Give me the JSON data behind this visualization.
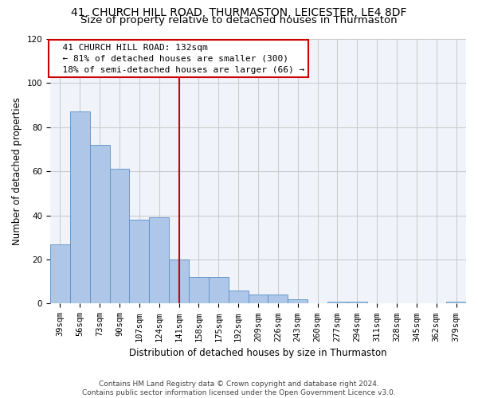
{
  "title_line1": "41, CHURCH HILL ROAD, THURMASTON, LEICESTER, LE4 8DF",
  "title_line2": "Size of property relative to detached houses in Thurmaston",
  "xlabel": "Distribution of detached houses by size in Thurmaston",
  "ylabel": "Number of detached properties",
  "categories": [
    "39sqm",
    "56sqm",
    "73sqm",
    "90sqm",
    "107sqm",
    "124sqm",
    "141sqm",
    "158sqm",
    "175sqm",
    "192sqm",
    "209sqm",
    "226sqm",
    "243sqm",
    "260sqm",
    "277sqm",
    "294sqm",
    "311sqm",
    "328sqm",
    "345sqm",
    "362sqm",
    "379sqm"
  ],
  "values": [
    27,
    87,
    72,
    61,
    38,
    39,
    20,
    12,
    12,
    6,
    4,
    4,
    2,
    0,
    1,
    1,
    0,
    0,
    0,
    0,
    1
  ],
  "bar_color": "#aec6e8",
  "bar_edgecolor": "#5a8fc2",
  "vline_x_index": 6,
  "vline_color": "#cc0000",
  "annotation_text": "  41 CHURCH HILL ROAD: 132sqm\n  ← 81% of detached houses are smaller (300)\n  18% of semi-detached houses are larger (66) →",
  "annotation_box_color": "#ffffff",
  "annotation_box_edgecolor": "#cc0000",
  "ylim": [
    0,
    120
  ],
  "yticks": [
    0,
    20,
    40,
    60,
    80,
    100,
    120
  ],
  "grid_color": "#cccccc",
  "background_color": "#f0f4fa",
  "footer_text": "Contains HM Land Registry data © Crown copyright and database right 2024.\nContains public sector information licensed under the Open Government Licence v3.0.",
  "title_fontsize": 10,
  "subtitle_fontsize": 9.5,
  "tick_fontsize": 7.5,
  "ylabel_fontsize": 8.5,
  "xlabel_fontsize": 8.5,
  "annotation_fontsize": 8,
  "footer_fontsize": 6.5
}
